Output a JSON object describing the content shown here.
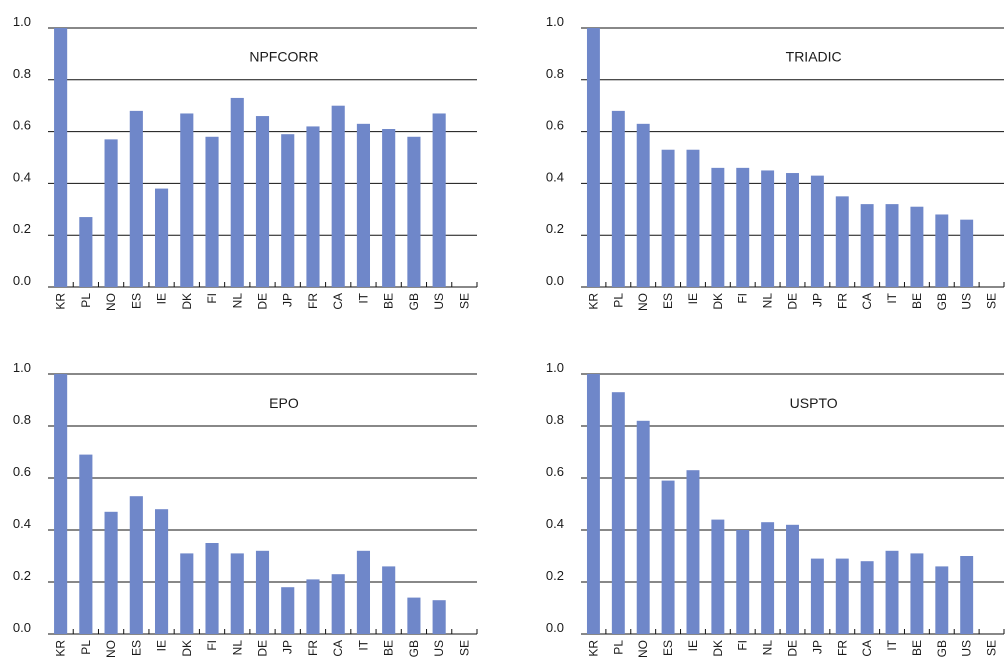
{
  "chart_data": [
    {
      "type": "bar",
      "title": "NPFCORR",
      "categories": [
        "KR",
        "PL",
        "NO",
        "ES",
        "IE",
        "DK",
        "FI",
        "NL",
        "DE",
        "JP",
        "FR",
        "CA",
        "IT",
        "BE",
        "GB",
        "US",
        "SE"
      ],
      "values": [
        1.0,
        0.27,
        0.57,
        0.68,
        0.38,
        0.67,
        0.58,
        0.73,
        0.66,
        0.59,
        0.62,
        0.7,
        0.63,
        0.61,
        0.58,
        0.67,
        0.0
      ],
      "ylim": [
        0,
        1.0
      ],
      "yticks": [
        "0.0",
        "0.2",
        "0.4",
        "0.6",
        "0.8",
        "1.0"
      ],
      "grid": true,
      "color": "#6f87c9"
    },
    {
      "type": "bar",
      "title": "TRIADIC",
      "categories": [
        "KR",
        "PL",
        "NO",
        "ES",
        "IE",
        "DK",
        "FI",
        "NL",
        "DE",
        "JP",
        "FR",
        "CA",
        "IT",
        "BE",
        "GB",
        "US",
        "SE"
      ],
      "values": [
        1.0,
        0.68,
        0.63,
        0.53,
        0.53,
        0.46,
        0.46,
        0.45,
        0.44,
        0.43,
        0.35,
        0.32,
        0.32,
        0.31,
        0.28,
        0.26,
        0.0
      ],
      "ylim": [
        0,
        1.0
      ],
      "yticks": [
        "0.0",
        "0.2",
        "0.4",
        "0.6",
        "0.8",
        "1.0"
      ],
      "grid": true,
      "color": "#6f87c9"
    },
    {
      "type": "bar",
      "title": "EPO",
      "categories": [
        "KR",
        "PL",
        "NO",
        "ES",
        "IE",
        "DK",
        "FI",
        "NL",
        "DE",
        "JP",
        "FR",
        "CA",
        "IT",
        "BE",
        "GB",
        "US",
        "SE"
      ],
      "values": [
        1.0,
        0.69,
        0.47,
        0.53,
        0.48,
        0.31,
        0.35,
        0.31,
        0.32,
        0.18,
        0.21,
        0.23,
        0.32,
        0.26,
        0.14,
        0.13,
        0.0
      ],
      "ylim": [
        0,
        1.0
      ],
      "yticks": [
        "0.0",
        "0.2",
        "0.4",
        "0.6",
        "0.8",
        "1.0"
      ],
      "grid": true,
      "color": "#6f87c9"
    },
    {
      "type": "bar",
      "title": "USPTO",
      "categories": [
        "KR",
        "PL",
        "NO",
        "ES",
        "IE",
        "DK",
        "FI",
        "NL",
        "DE",
        "JP",
        "FR",
        "CA",
        "IT",
        "BE",
        "GB",
        "US",
        "SE"
      ],
      "values": [
        1.0,
        0.93,
        0.82,
        0.59,
        0.63,
        0.44,
        0.4,
        0.43,
        0.42,
        0.29,
        0.29,
        0.28,
        0.32,
        0.31,
        0.26,
        0.3,
        0.0
      ],
      "ylim": [
        0,
        1.0
      ],
      "yticks": [
        "0.0",
        "0.2",
        "0.4",
        "0.6",
        "0.8",
        "1.0"
      ],
      "grid": true,
      "color": "#6f87c9"
    }
  ]
}
